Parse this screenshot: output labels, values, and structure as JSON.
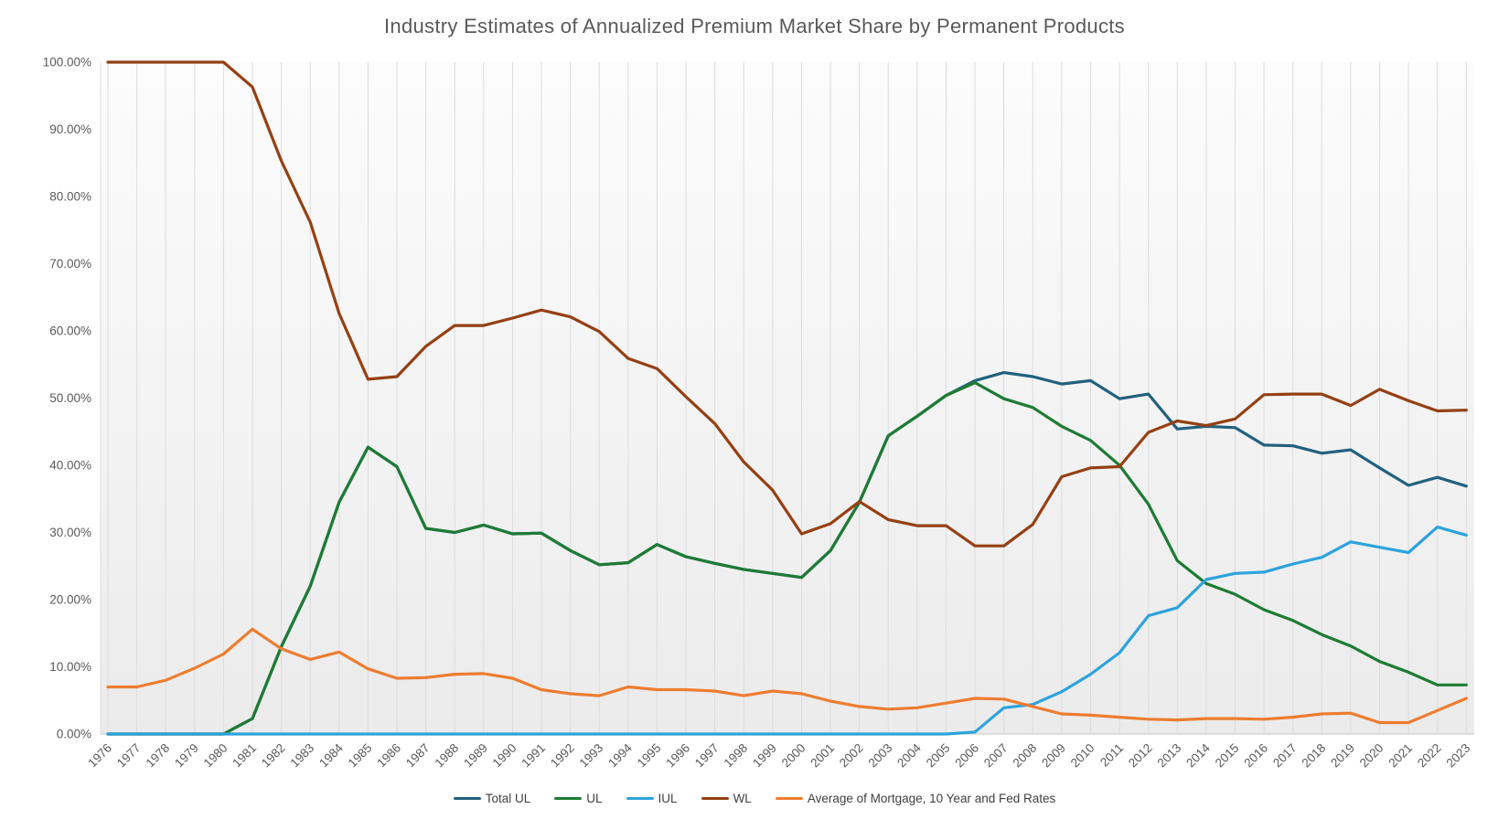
{
  "chart_data": {
    "type": "line",
    "title": "Industry Estimates of Annualized Premium Market Share by Permanent Products",
    "x": [
      1976,
      1977,
      1978,
      1979,
      1980,
      1981,
      1982,
      1983,
      1984,
      1985,
      1986,
      1987,
      1988,
      1989,
      1990,
      1991,
      1992,
      1993,
      1994,
      1995,
      1996,
      1997,
      1998,
      1999,
      2000,
      2001,
      2002,
      2003,
      2004,
      2005,
      2006,
      2007,
      2008,
      2009,
      2010,
      2011,
      2012,
      2013,
      2014,
      2015,
      2016,
      2017,
      2018,
      2019,
      2020,
      2021,
      2022,
      2023
    ],
    "y_ticks": [
      "0.00%",
      "10.00%",
      "20.00%",
      "30.00%",
      "40.00%",
      "50.00%",
      "60.00%",
      "70.00%",
      "80.00%",
      "90.00%",
      "100.00%"
    ],
    "ylim": [
      0,
      100
    ],
    "grid": "vertical-only",
    "legend_position": "bottom",
    "xlabel": "",
    "ylabel": "",
    "series": [
      {
        "name": "Total UL",
        "color": "#21617E",
        "values": [
          0,
          0,
          0,
          0,
          0,
          2.3,
          13,
          22,
          34.5,
          42.7,
          39.8,
          30.6,
          30,
          31.1,
          29.8,
          29.9,
          27.3,
          25.2,
          25.5,
          28.2,
          26.4,
          25.4,
          24.5,
          23.9,
          23.3,
          27.3,
          34.5,
          44.4,
          47.3,
          50.4,
          52.6,
          53.8,
          53.2,
          52.1,
          52.6,
          49.9,
          50.6,
          45.4,
          45.8,
          45.6,
          43,
          42.9,
          41.8,
          42.3,
          39.6,
          37,
          38.2,
          36.9
        ]
      },
      {
        "name": "UL",
        "color": "#1E7B34",
        "values": [
          0,
          0,
          0,
          0,
          0,
          2.3,
          13,
          22,
          34.5,
          42.7,
          39.8,
          30.6,
          30,
          31.1,
          29.8,
          29.9,
          27.3,
          25.2,
          25.5,
          28.2,
          26.4,
          25.4,
          24.5,
          23.9,
          23.3,
          27.3,
          34.5,
          44.4,
          47.3,
          50.4,
          52.3,
          49.9,
          48.6,
          45.8,
          43.7,
          40,
          34.2,
          25.8,
          22.4,
          20.8,
          18.5,
          16.9,
          14.8,
          13.1,
          10.8,
          9.2,
          7.3,
          7.3
        ]
      },
      {
        "name": "IUL",
        "color": "#2EA3DC",
        "values": [
          0,
          0,
          0,
          0,
          0,
          0,
          0,
          0,
          0,
          0,
          0,
          0,
          0,
          0,
          0,
          0,
          0,
          0,
          0,
          0,
          0,
          0,
          0,
          0,
          0,
          0,
          0,
          0,
          0,
          0,
          0.3,
          3.9,
          4.4,
          6.3,
          8.9,
          12.1,
          17.6,
          18.8,
          23,
          23.9,
          24.1,
          25.3,
          26.3,
          28.6,
          27.8,
          27,
          30.8,
          29.6
        ]
      },
      {
        "name": "WL",
        "color": "#954013",
        "values": [
          100,
          100,
          100,
          100,
          100,
          96.3,
          85.3,
          76.2,
          62.6,
          52.8,
          53.2,
          57.7,
          60.8,
          60.8,
          61.9,
          63.1,
          62.1,
          59.9,
          55.9,
          54.4,
          50.2,
          46.2,
          40.5,
          36.3,
          29.8,
          31.3,
          34.6,
          31.9,
          31,
          31,
          28,
          28,
          31.2,
          38.3,
          39.6,
          39.8,
          44.9,
          46.6,
          45.9,
          46.9,
          50.5,
          50.6,
          50.6,
          48.9,
          51.3,
          49.6,
          48.1,
          48.2
        ]
      },
      {
        "name": "Average of Mortgage, 10 Year and Fed Rates",
        "color": "#ED7D31",
        "values": [
          7,
          7,
          8,
          9.8,
          11.9,
          15.6,
          12.7,
          11.1,
          12.2,
          9.7,
          8.3,
          8.4,
          8.9,
          9,
          8.3,
          6.6,
          6,
          5.7,
          7,
          6.6,
          6.6,
          6.4,
          5.7,
          6.4,
          6,
          4.9,
          4.1,
          3.7,
          3.9,
          4.6,
          5.3,
          5.2,
          4.1,
          3,
          2.8,
          2.5,
          2.2,
          2.1,
          2.3,
          2.3,
          2.2,
          2.5,
          3,
          3.1,
          1.7,
          1.7,
          3.5,
          5.3
        ]
      }
    ]
  },
  "colors": {
    "title_text": "#595959",
    "axis_labels": "#595959",
    "legend_text": "#3F3F3F",
    "gridline": "#DCDCDC",
    "axis_line": "#D0D0D0",
    "plot_bg_top": "#FCFCFC",
    "plot_bg_bottom": "#EBEBEB",
    "page_bg": "#FFFFFF"
  }
}
